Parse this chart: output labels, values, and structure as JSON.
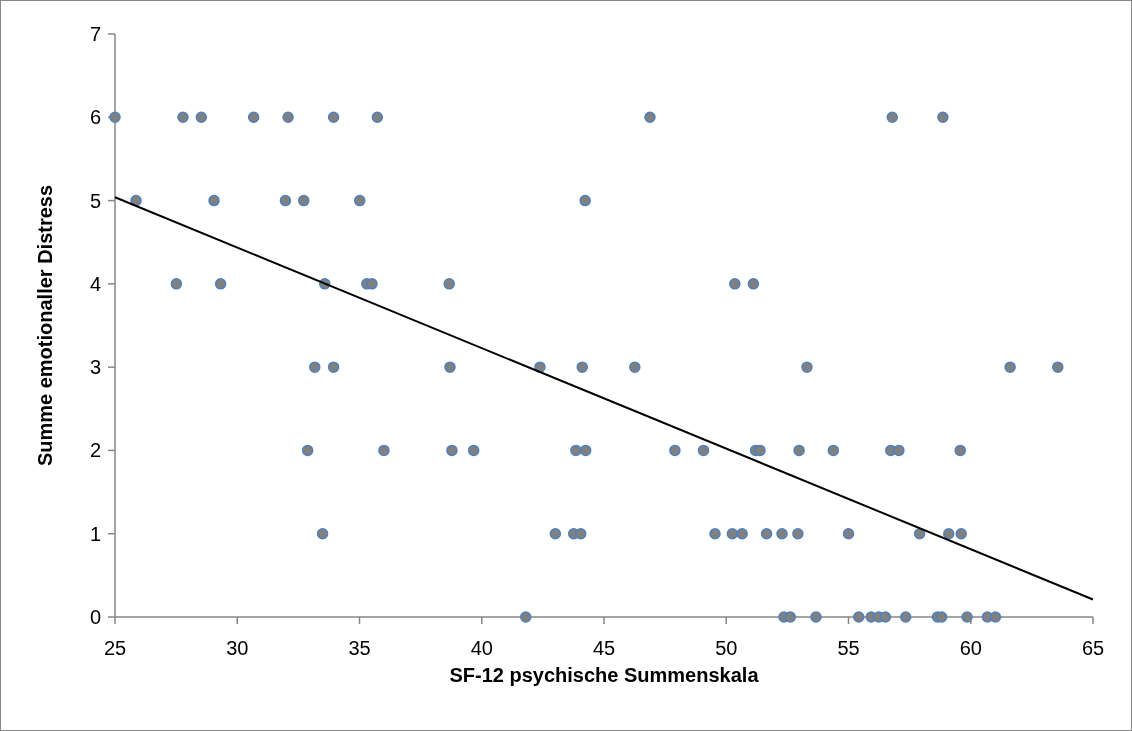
{
  "chart_data": {
    "type": "scatter",
    "xlabel": "SF-12 psychische Summenskala",
    "ylabel": "Summe emotionaller Distress",
    "xlim": [
      25,
      65
    ],
    "xticks": [
      25,
      30,
      35,
      40,
      45,
      50,
      55,
      60,
      65
    ],
    "ylim": [
      0,
      7
    ],
    "yticks": [
      0,
      1,
      2,
      3,
      4,
      5,
      6,
      7
    ],
    "grid": false,
    "marker": "circle",
    "series": [
      {
        "color": "#4f81bd",
        "x": [
          25.0,
          27.78,
          28.53,
          30.67,
          32.08,
          33.94,
          35.73,
          46.88,
          56.79,
          58.86,
          25.86,
          29.05,
          31.97,
          32.72,
          35.01,
          44.23,
          27.51,
          29.32,
          33.58,
          35.3,
          35.51,
          38.67,
          50.35,
          51.11,
          33.17,
          33.94,
          38.7,
          42.38,
          44.11,
          46.26,
          53.3,
          61.61,
          63.56,
          32.88,
          36.0,
          38.78,
          39.67,
          43.85,
          44.25,
          47.9,
          49.07,
          51.2,
          51.38,
          52.98,
          54.38,
          56.73,
          57.06,
          59.57,
          33.49,
          43.01,
          43.76,
          44.05,
          49.54,
          50.25,
          50.65,
          51.65,
          52.28,
          52.93,
          55.0,
          57.91,
          59.1,
          59.61,
          41.8,
          52.36,
          52.62,
          53.67,
          55.42,
          55.93,
          56.24,
          56.51,
          57.34,
          58.64,
          58.81,
          59.85,
          60.68,
          61.01
        ],
        "values": [
          6,
          6,
          6,
          6,
          6,
          6,
          6,
          6,
          6,
          6,
          5,
          5,
          5,
          5,
          5,
          5,
          4,
          4,
          4,
          4,
          4,
          4,
          4,
          4,
          3,
          3,
          3,
          3,
          3,
          3,
          3,
          3,
          3,
          2,
          2,
          2,
          2,
          2,
          2,
          2,
          2,
          2,
          2,
          2,
          2,
          2,
          2,
          2,
          1,
          1,
          1,
          1,
          1,
          1,
          1,
          1,
          1,
          1,
          1,
          1,
          1,
          1,
          0,
          0,
          0,
          0,
          0,
          0,
          0,
          0,
          0,
          0,
          0,
          0,
          0,
          0
        ]
      },
      {
        "type": "line",
        "color": "#000000",
        "marker": "none",
        "line_style": "solid",
        "x": [
          25,
          65
        ],
        "values": [
          5.04,
          0.21
        ]
      }
    ]
  }
}
